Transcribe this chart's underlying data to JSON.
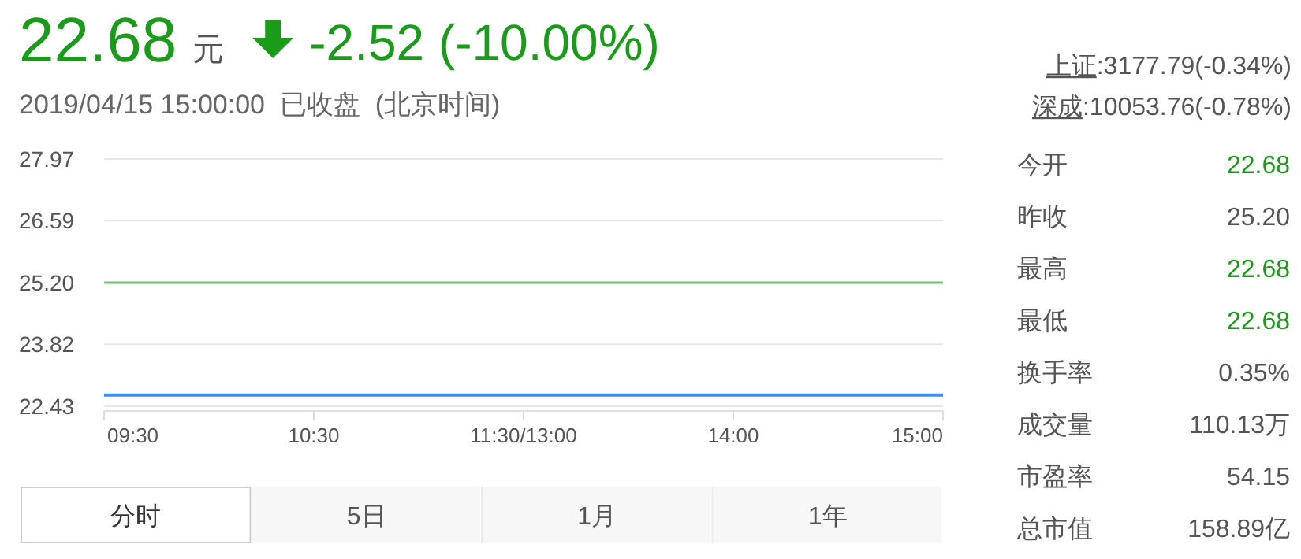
{
  "chart_data": [
    {
      "type": "line",
      "title": "22.68",
      "subtitle": "2019/04/15 15:00:00  已收盘  (北京时间)",
      "annotations": [
        "元",
        "-2.52 (-10.00%)",
        "分时",
        "5日",
        "1月",
        "1年"
      ],
      "categories": [
        "09:30",
        "10:30",
        "11:30/13:00",
        "14:00",
        "15:00"
      ],
      "series": [
        {
          "color": "#3d8ef0",
          "values": [
            22.68,
            22.68,
            22.68,
            22.68,
            22.68
          ]
        }
      ],
      "ref_lines": [
        {
          "axis": "y",
          "value": 25.2,
          "color": "#6cc46c"
        }
      ],
      "ylim": [
        22.43,
        27.97
      ],
      "yticks": [
        22.43,
        23.82,
        {
          "value": 25.2,
          "label": "25.20"
        },
        26.59,
        27.97
      ],
      "grid": "y",
      "marker": "none",
      "line_style": "solid"
    },
    {
      "type": "other",
      "annotations": [
        "上证:3177.79(-0.34%)",
        "深成:10053.76(-0.78%)"
      ],
      "categories": [
        "今开",
        "昨收",
        "最高",
        "最低",
        "换手率",
        "成交量",
        "市盈率",
        "总市值"
      ],
      "value_labels": [
        "22.68",
        "25.20",
        "22.68",
        "22.68",
        "0.35%",
        "110.13万",
        "54.15",
        "158.89亿"
      ],
      "colors": [
        "#1a9c1a",
        "#555555",
        "#1a9c1a",
        "#1a9c1a",
        "#555555",
        "#555555",
        "#555555",
        "#555555"
      ]
    }
  ]
}
